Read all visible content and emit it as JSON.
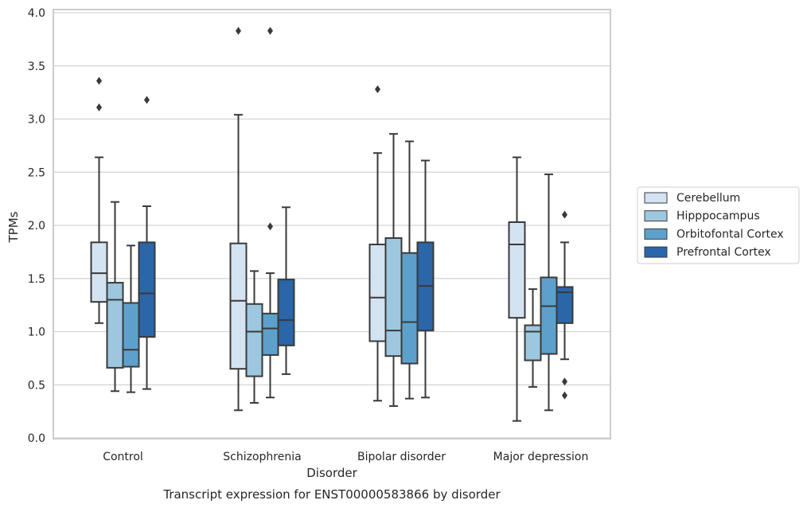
{
  "chart_data": {
    "type": "box",
    "title": "",
    "caption": "Transcript expression for ENST00000583866 by disorder",
    "xlabel": "Disorder",
    "ylabel": "TPMs",
    "ylim": [
      0.0,
      4.0
    ],
    "yticks": [
      "0.0",
      "0.5",
      "1.0",
      "1.5",
      "2.0",
      "2.5",
      "3.0",
      "3.5",
      "4.0"
    ],
    "categories": [
      "Control",
      "Schizophrenia",
      "Bipolar disorder",
      "Major depression"
    ],
    "grid": "horizontal",
    "legend_position": "right",
    "series": [
      {
        "name": "Cerebellum",
        "color": "#d3e3f2",
        "boxes": [
          {
            "whisker_low": 1.08,
            "q1": 1.28,
            "median": 1.55,
            "q3": 1.84,
            "whisker_high": 2.64,
            "outliers": [
              3.11,
              3.36
            ]
          },
          {
            "whisker_low": 0.26,
            "q1": 0.65,
            "median": 1.29,
            "q3": 1.83,
            "whisker_high": 3.04,
            "outliers": [
              3.83
            ]
          },
          {
            "whisker_low": 0.35,
            "q1": 0.91,
            "median": 1.32,
            "q3": 1.82,
            "whisker_high": 2.68,
            "outliers": [
              3.28
            ]
          },
          {
            "whisker_low": 0.16,
            "q1": 1.13,
            "median": 1.82,
            "q3": 2.03,
            "whisker_high": 2.64,
            "outliers": []
          }
        ]
      },
      {
        "name": "Hipppocampus",
        "color": "#9dc7de",
        "boxes": [
          {
            "whisker_low": 0.44,
            "q1": 0.66,
            "median": 1.3,
            "q3": 1.46,
            "whisker_high": 2.22,
            "outliers": []
          },
          {
            "whisker_low": 0.33,
            "q1": 0.58,
            "median": 1.0,
            "q3": 1.26,
            "whisker_high": 1.57,
            "outliers": []
          },
          {
            "whisker_low": 0.3,
            "q1": 0.77,
            "median": 1.01,
            "q3": 1.88,
            "whisker_high": 2.86,
            "outliers": []
          },
          {
            "whisker_low": 0.48,
            "q1": 0.73,
            "median": 1.0,
            "q3": 1.06,
            "whisker_high": 1.4,
            "outliers": []
          }
        ]
      },
      {
        "name": "Orbitofontal Cortex",
        "color": "#5da0cb",
        "boxes": [
          {
            "whisker_low": 0.43,
            "q1": 0.67,
            "median": 0.83,
            "q3": 1.27,
            "whisker_high": 1.81,
            "outliers": []
          },
          {
            "whisker_low": 0.38,
            "q1": 0.78,
            "median": 1.03,
            "q3": 1.17,
            "whisker_high": 1.55,
            "outliers": [
              1.99,
              3.83
            ]
          },
          {
            "whisker_low": 0.37,
            "q1": 0.7,
            "median": 1.09,
            "q3": 1.74,
            "whisker_high": 2.79,
            "outliers": []
          },
          {
            "whisker_low": 0.26,
            "q1": 0.79,
            "median": 1.24,
            "q3": 1.51,
            "whisker_high": 2.48,
            "outliers": []
          }
        ]
      },
      {
        "name": "Prefrontal Cortex",
        "color": "#2a66a8",
        "boxes": [
          {
            "whisker_low": 0.46,
            "q1": 0.95,
            "median": 1.36,
            "q3": 1.84,
            "whisker_high": 2.18,
            "outliers": [
              3.18
            ]
          },
          {
            "whisker_low": 0.6,
            "q1": 0.87,
            "median": 1.11,
            "q3": 1.49,
            "whisker_high": 2.17,
            "outliers": []
          },
          {
            "whisker_low": 0.38,
            "q1": 1.01,
            "median": 1.43,
            "q3": 1.84,
            "whisker_high": 2.61,
            "outliers": []
          },
          {
            "whisker_low": 0.74,
            "q1": 1.08,
            "median": 1.37,
            "q3": 1.42,
            "whisker_high": 1.84,
            "outliers": [
              0.4,
              0.53,
              2.1
            ]
          }
        ]
      }
    ]
  }
}
